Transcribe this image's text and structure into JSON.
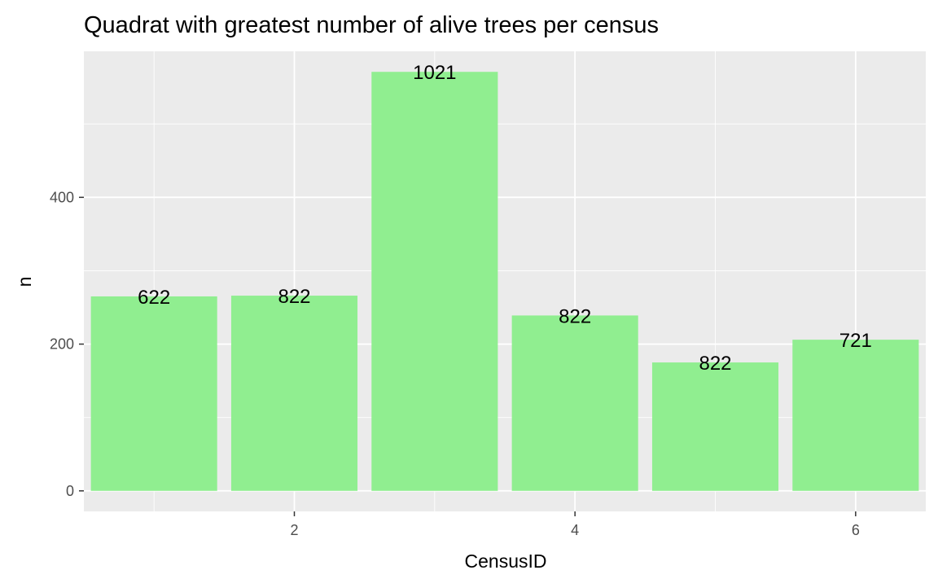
{
  "chart_data": {
    "type": "bar",
    "title": "Quadrat with greatest number of alive trees per census",
    "xlabel": "CensusID",
    "ylabel": "n",
    "categories": [
      1,
      2,
      3,
      4,
      5,
      6
    ],
    "values": [
      265,
      266,
      571,
      239,
      175,
      206
    ],
    "bar_labels": [
      "622",
      "822",
      "1021",
      "822",
      "822",
      "721"
    ],
    "xlim": [
      0.5,
      6.5
    ],
    "ylim": [
      -28,
      599
    ],
    "x_ticks": [
      2,
      4,
      6
    ],
    "y_ticks": [
      0,
      200,
      400
    ],
    "bar_color": "#90EE90",
    "panel_color": "#EBEBEB",
    "grid_color": "#FFFFFF",
    "grid": true,
    "legend": "none"
  }
}
